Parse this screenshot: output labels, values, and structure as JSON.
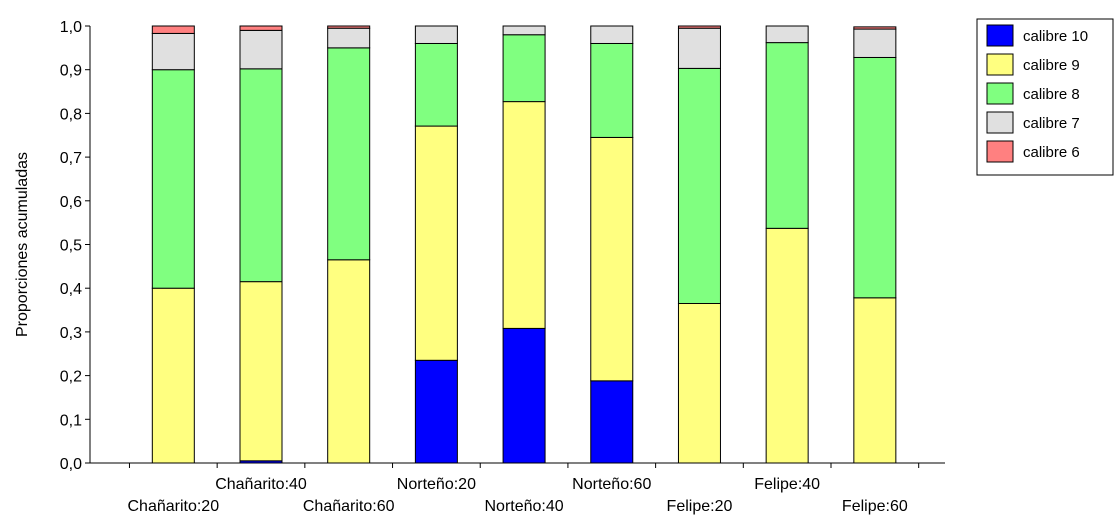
{
  "chart_data": {
    "type": "bar",
    "stacked": true,
    "cumulative": true,
    "ylabel": "Proporciones acumuladas",
    "ylim": [
      0,
      1
    ],
    "yticks": [
      "0,0",
      "0,1",
      "0,2",
      "0,3",
      "0,4",
      "0,5",
      "0,6",
      "0,7",
      "0,8",
      "0,9",
      "1,0"
    ],
    "categories": [
      "Chañarito:20",
      "Chañarito:40",
      "Chañarito:60",
      "Norteño:20",
      "Norteño:40",
      "Norteño:60",
      "Felipe:20",
      "Felipe:40",
      "Felipe:60"
    ],
    "series": [
      {
        "name": "calibre 10",
        "color": "#0000ff",
        "values": [
          0.0,
          0.005,
          0.0,
          0.235,
          0.308,
          0.188,
          0.0,
          0.0,
          0.0
        ]
      },
      {
        "name": "calibre 9",
        "color": "#ffff80",
        "values": [
          0.4,
          0.41,
          0.465,
          0.536,
          0.519,
          0.557,
          0.365,
          0.537,
          0.378
        ]
      },
      {
        "name": "calibre 8",
        "color": "#80ff80",
        "values": [
          0.5,
          0.487,
          0.485,
          0.189,
          0.153,
          0.215,
          0.538,
          0.425,
          0.55
        ]
      },
      {
        "name": "calibre 7",
        "color": "#e0e0e0",
        "values": [
          0.083,
          0.088,
          0.045,
          0.04,
          0.02,
          0.04,
          0.092,
          0.038,
          0.065
        ]
      },
      {
        "name": "calibre 6",
        "color": "#ff8080",
        "values": [
          0.017,
          0.01,
          0.005,
          0.005,
          0.005,
          0.005,
          0.005,
          0.005,
          0.005
        ]
      }
    ],
    "legend_position": "right",
    "grid": false
  }
}
